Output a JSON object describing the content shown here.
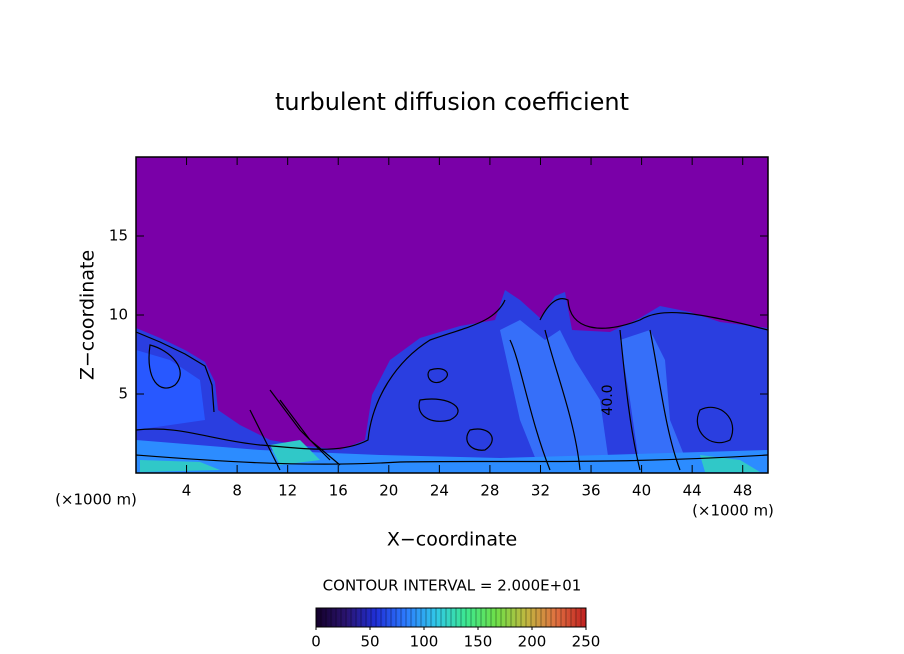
{
  "chart_data": {
    "type": "contour",
    "title": "turbulent diffusion coefficient",
    "x_label": "X−coordinate",
    "y_label": "Z−coordinate",
    "x_unit": "(×1000 m)",
    "y_unit": "(×1000 m)",
    "xlim": [
      0,
      50
    ],
    "xticks": [
      4,
      8,
      12,
      16,
      20,
      24,
      28,
      32,
      36,
      40,
      44,
      48
    ],
    "ylim": [
      0,
      20
    ],
    "yticks": [
      5,
      10,
      15
    ],
    "contour_interval": "CONTOUR INTERVAL = 2.000E+01",
    "contour_labels": [
      "40.0"
    ],
    "colorbar": {
      "lim": [
        0,
        250
      ],
      "ticks": [
        0,
        50,
        100,
        150,
        200,
        250
      ],
      "colormap": [
        "#14002a",
        "#2a1470",
        "#2030d8",
        "#2c7cff",
        "#30c8e8",
        "#3ce890",
        "#6ee048",
        "#c0b840",
        "#e07040",
        "#c02020"
      ]
    },
    "background_color": "#7a00a8"
  }
}
